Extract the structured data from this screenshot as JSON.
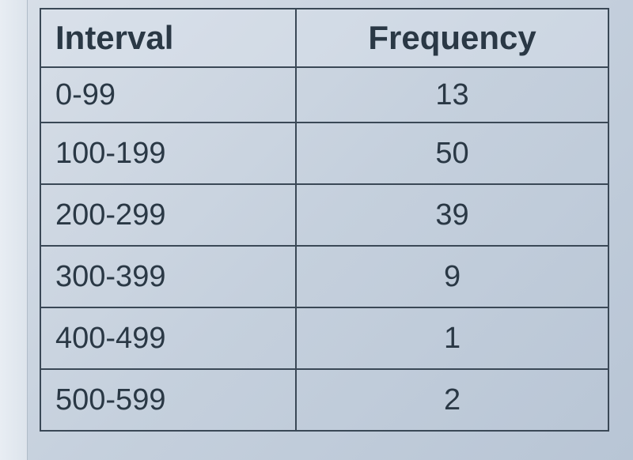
{
  "table": {
    "columns": [
      "Interval",
      "Frequency"
    ],
    "rows": [
      {
        "interval": "0-99",
        "frequency": "13"
      },
      {
        "interval": "100-199",
        "frequency": "50"
      },
      {
        "interval": "200-299",
        "frequency": "39"
      },
      {
        "interval": "300-399",
        "frequency": "9"
      },
      {
        "interval": "400-499",
        "frequency": "1"
      },
      {
        "interval": "500-599",
        "frequency": "2"
      }
    ],
    "header_fontsize": 42,
    "cell_fontsize": 38,
    "text_color": "#2a3845",
    "border_color": "#3a4856",
    "border_width": 2,
    "background_color": "#d0dae6",
    "col1_align": "left",
    "col2_align": "center",
    "col1_width_pct": 45,
    "col2_width_pct": 55
  }
}
